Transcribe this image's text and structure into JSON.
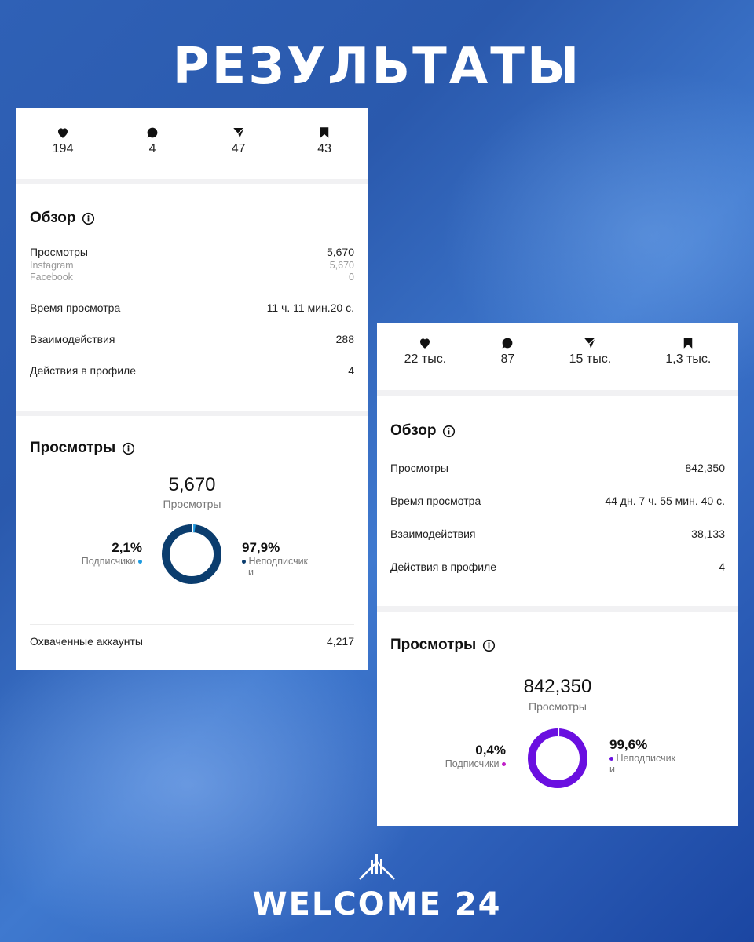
{
  "header": {
    "title": "РЕЗУЛЬТАТЫ"
  },
  "card1": {
    "stats": [
      {
        "icon": "heart-icon",
        "value": "194"
      },
      {
        "icon": "comment-icon",
        "value": "4"
      },
      {
        "icon": "share-icon",
        "value": "47"
      },
      {
        "icon": "bookmark-icon",
        "value": "43"
      }
    ],
    "overview": {
      "title": "Обзор",
      "views_label": "Просмотры",
      "views_value": "5,670",
      "instagram_label": "Instagram",
      "instagram_value": "5,670",
      "facebook_label": "Facebook",
      "facebook_value": "0",
      "watch_time_label": "Время просмотра",
      "watch_time_value": "11 ч. 11 мин.20 с.",
      "interactions_label": "Взаимодействия",
      "interactions_value": "288",
      "profile_actions_label": "Действия в профиле",
      "profile_actions_value": "4"
    },
    "views": {
      "title": "Просмотры",
      "total": "5,670",
      "total_label": "Просмотры",
      "followers_pct": "2,1%",
      "followers_label": "Подписчики",
      "nonfollowers_pct": "97,9%",
      "nonfollowers_label_line1": "Неподписчик",
      "nonfollowers_label_line2": "и",
      "followers_fraction": 0.021,
      "ring_color": "#0b3d6e",
      "followers_color": "#1e9be0",
      "reach_label": "Охваченные аккаунты",
      "reach_value": "4,217"
    }
  },
  "card2": {
    "stats": [
      {
        "icon": "heart-icon",
        "value": "22 тыс."
      },
      {
        "icon": "comment-icon",
        "value": "87"
      },
      {
        "icon": "share-icon",
        "value": "15 тыс."
      },
      {
        "icon": "bookmark-icon",
        "value": "1,3 тыс."
      }
    ],
    "overview": {
      "title": "Обзор",
      "views_label": "Просмотры",
      "views_value": "842,350",
      "watch_time_label": "Время просмотра",
      "watch_time_value": "44 дн. 7 ч. 55 мин. 40 с.",
      "interactions_label": "Взаимодействия",
      "interactions_value": "38,133",
      "profile_actions_label": "Действия в профиле",
      "profile_actions_value": "4"
    },
    "views": {
      "title": "Просмотры",
      "total": "842,350",
      "total_label": "Просмотры",
      "followers_pct": "0,4%",
      "followers_label": "Подписчики",
      "nonfollowers_pct": "99,6%",
      "nonfollowers_label_line1": "Неподписчик",
      "nonfollowers_label_line2": "и",
      "followers_fraction": 0.004,
      "ring_color": "#6a0fe0",
      "followers_color": "#c020c8"
    }
  },
  "footer": {
    "logo_text": "WELCOME 24"
  }
}
